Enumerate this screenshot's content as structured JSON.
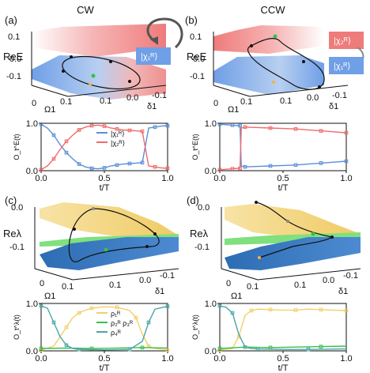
{
  "colors": {
    "blue": "#5a8fd6",
    "red": "#ef6b6b",
    "yellow": "#f3cf6b",
    "green": "#37c04a",
    "teal": "#4aa6a6",
    "surface_red": "#f08d8d",
    "surface_blue": "#6f9fe6",
    "surface_yellow": "#f4d98a",
    "surface_green": "#7fe07d",
    "surface_darkblue": "#2f6fb3"
  },
  "panels": {
    "a": {
      "label": "(a)",
      "title": "CW",
      "ylabel": "ReE",
      "xlabel_omega": "Ω1",
      "xlabel_delta": "δ1",
      "yticks": [
        "0.1",
        "0.0",
        "-0.1"
      ],
      "xticks_left": [
        "0",
        "0.1"
      ],
      "xticks_right": [
        "0.1",
        "0.0",
        "-0.1"
      ],
      "legend": "|χ₁ᴿ⟩"
    },
    "b": {
      "label": "(b)",
      "title": "CCW",
      "ylabel": "ReE",
      "xlabel_omega": "Ω1",
      "xlabel_delta": "δ1",
      "yticks": [
        "0.1",
        "0.0",
        "-0.1"
      ],
      "xticks_left": [
        "0",
        "0.1"
      ],
      "xticks_right": [
        "0.1",
        "0.0",
        "-0.1"
      ],
      "legend_top": "|χ₂ᴿ⟩",
      "legend_bottom": "|χ₁ᴿ⟩"
    },
    "c": {
      "label": "(c)",
      "ylabel": "Reλ",
      "xlabel_omega": "Ω1",
      "xlabel_delta": "δ1",
      "yticks": [
        "0.0",
        "-0.1"
      ],
      "xticks_left": [
        "0",
        "0.1"
      ],
      "xticks_right": [
        "0.1",
        "0.0",
        "-0.1"
      ]
    },
    "d": {
      "label": "(d)",
      "ylabel": "Reλ",
      "xlabel_omega": "Ω1",
      "xlabel_delta": "δ1",
      "yticks": [
        "0.0",
        "-0.1"
      ],
      "xticks_left": [
        "0",
        "0.1"
      ],
      "xticks_right": [
        "0.1",
        "0.0",
        "-0.1"
      ]
    }
  },
  "chart_data": [
    {
      "type": "line",
      "panel": "a-lower",
      "xlabel": "t/T",
      "ylabel": "O_t^E(t)",
      "xticks": [
        "0.0",
        "0.5",
        "1.0"
      ],
      "yticks": [
        "0.0",
        "1.0"
      ],
      "ylim": [
        0,
        1
      ],
      "xlim": [
        0,
        1
      ],
      "series": [
        {
          "name": "|χ₁ᴿ⟩",
          "color": "blue",
          "x": [
            0,
            0.05,
            0.1,
            0.15,
            0.2,
            0.25,
            0.3,
            0.35,
            0.4,
            0.45,
            0.5,
            0.55,
            0.6,
            0.65,
            0.7,
            0.75,
            0.8,
            0.85,
            0.9,
            0.95,
            1.0
          ],
          "y": [
            0.98,
            0.9,
            0.75,
            0.55,
            0.38,
            0.25,
            0.14,
            0.08,
            0.05,
            0.04,
            0.06,
            0.1,
            0.12,
            0.14,
            0.15,
            0.16,
            0.17,
            0.9,
            0.92,
            0.94,
            0.95
          ]
        },
        {
          "name": "|χ₂ᴿ⟩",
          "color": "red",
          "x": [
            0,
            0.05,
            0.1,
            0.15,
            0.2,
            0.25,
            0.3,
            0.35,
            0.4,
            0.45,
            0.5,
            0.55,
            0.6,
            0.65,
            0.7,
            0.75,
            0.8,
            0.85,
            0.9,
            0.95,
            1.0
          ],
          "y": [
            0.02,
            0.1,
            0.25,
            0.45,
            0.62,
            0.75,
            0.86,
            0.92,
            0.95,
            0.96,
            0.94,
            0.9,
            0.88,
            0.86,
            0.85,
            0.84,
            0.83,
            0.1,
            0.08,
            0.06,
            0.05
          ]
        }
      ]
    },
    {
      "type": "line",
      "panel": "b-lower",
      "xlabel": "t/T",
      "ylabel": "O_t^E(t)",
      "xticks": [
        "0.0",
        "0.5",
        "1.0"
      ],
      "yticks": [
        "0.0",
        "1.0"
      ],
      "ylim": [
        0,
        1
      ],
      "xlim": [
        0,
        1
      ],
      "series": [
        {
          "name": "|χ₁ᴿ⟩",
          "color": "blue",
          "x": [
            0,
            0.05,
            0.1,
            0.15,
            0.16,
            0.17,
            0.2,
            0.3,
            0.4,
            0.5,
            0.6,
            0.7,
            0.8,
            0.9,
            1.0
          ],
          "y": [
            0.98,
            0.97,
            0.96,
            0.95,
            0.95,
            0.1,
            0.08,
            0.09,
            0.1,
            0.11,
            0.12,
            0.14,
            0.16,
            0.18,
            0.2
          ]
        },
        {
          "name": "|χ₂ᴿ⟩",
          "color": "red",
          "x": [
            0,
            0.05,
            0.1,
            0.15,
            0.16,
            0.17,
            0.2,
            0.3,
            0.4,
            0.5,
            0.6,
            0.7,
            0.8,
            0.9,
            1.0
          ],
          "y": [
            0.02,
            0.03,
            0.04,
            0.05,
            0.05,
            0.9,
            0.92,
            0.91,
            0.9,
            0.89,
            0.88,
            0.86,
            0.84,
            0.82,
            0.8
          ]
        }
      ]
    },
    {
      "type": "line",
      "panel": "c-lower",
      "xlabel": "t/T",
      "ylabel": "O_t^λ(t)",
      "xticks": [
        "0.0",
        "0.5",
        "1.0"
      ],
      "yticks": [
        "0.0",
        "1.0"
      ],
      "ylim": [
        0,
        1
      ],
      "xlim": [
        0,
        1
      ],
      "series": [
        {
          "name": "ρ₁ᴿ",
          "color": "yellow",
          "x": [
            0,
            0.1,
            0.2,
            0.25,
            0.3,
            0.35,
            0.4,
            0.5,
            0.6,
            0.7,
            0.75,
            0.8,
            0.85,
            0.9,
            1.0
          ],
          "y": [
            0.02,
            0.1,
            0.5,
            0.7,
            0.8,
            0.86,
            0.9,
            0.93,
            0.92,
            0.85,
            0.7,
            0.35,
            0.1,
            0.05,
            0.02
          ]
        },
        {
          "name": "ρ₂ᴿ ρ₃ᴿ",
          "color": "green",
          "x": [
            0,
            0.2,
            0.4,
            0.6,
            0.8,
            1.0
          ],
          "y": [
            0.05,
            0.06,
            0.05,
            0.06,
            0.07,
            0.06
          ]
        },
        {
          "name": "ρ₄ᴿ",
          "color": "teal",
          "x": [
            0,
            0.05,
            0.1,
            0.15,
            0.2,
            0.25,
            0.3,
            0.5,
            0.7,
            0.8,
            0.85,
            0.9,
            1.0
          ],
          "y": [
            0.95,
            0.9,
            0.6,
            0.3,
            0.12,
            0.05,
            0.03,
            0.02,
            0.03,
            0.2,
            0.6,
            0.88,
            0.94
          ]
        }
      ]
    },
    {
      "type": "line",
      "panel": "d-lower",
      "xlabel": "t/T",
      "ylabel": "O_t^λ(t)",
      "xticks": [
        "0.0",
        "0.5",
        "1.0"
      ],
      "yticks": [
        "0.0",
        "1.0"
      ],
      "ylim": [
        0,
        1
      ],
      "xlim": [
        0,
        1
      ],
      "series": [
        {
          "name": "ρ₁ᴿ",
          "color": "yellow",
          "x": [
            0,
            0.1,
            0.15,
            0.2,
            0.25,
            0.3,
            0.4,
            0.5,
            0.6,
            0.7,
            0.8,
            0.9,
            1.0
          ],
          "y": [
            0.02,
            0.05,
            0.3,
            0.75,
            0.85,
            0.88,
            0.87,
            0.86,
            0.86,
            0.88,
            0.87,
            0.86,
            0.85
          ]
        },
        {
          "name": "ρ₂ᴿ ρ₃ᴿ",
          "color": "green",
          "x": [
            0,
            0.2,
            0.4,
            0.6,
            0.8,
            1.0
          ],
          "y": [
            0.05,
            0.08,
            0.07,
            0.08,
            0.09,
            0.1
          ]
        },
        {
          "name": "ρ₄ᴿ",
          "color": "teal",
          "x": [
            0,
            0.05,
            0.1,
            0.15,
            0.2,
            0.25,
            0.3,
            0.5,
            0.7,
            1.0
          ],
          "y": [
            0.95,
            0.92,
            0.8,
            0.35,
            0.08,
            0.05,
            0.04,
            0.03,
            0.03,
            0.04
          ]
        }
      ]
    }
  ]
}
